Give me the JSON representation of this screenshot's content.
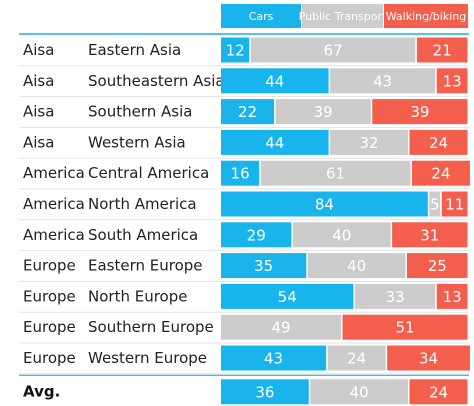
{
  "chart_data": {
    "type": "bar",
    "stacked": true,
    "orientation": "horizontal",
    "normalized_to": 100,
    "legend": [
      {
        "name": "Cars",
        "color": "#1ab4ec"
      },
      {
        "name": "Public Transport",
        "color": "#cccccc"
      },
      {
        "name": "Walking/biking",
        "color": "#f45e4c"
      }
    ],
    "rows": [
      {
        "region": "Aisa",
        "subregion": "Eastern Asia",
        "values": [
          12,
          67,
          21
        ]
      },
      {
        "region": "Aisa",
        "subregion": "Southeastern Asia",
        "values": [
          44,
          43,
          13
        ]
      },
      {
        "region": "Aisa",
        "subregion": "Southern Asia",
        "values": [
          22,
          39,
          39
        ]
      },
      {
        "region": "Aisa",
        "subregion": "Western Asia",
        "values": [
          44,
          32,
          24
        ]
      },
      {
        "region": "America",
        "subregion": "Central America",
        "values": [
          16,
          61,
          24
        ]
      },
      {
        "region": "America",
        "subregion": "North America",
        "values": [
          84,
          5,
          11
        ]
      },
      {
        "region": "America",
        "subregion": "South America",
        "values": [
          29,
          40,
          31
        ]
      },
      {
        "region": "Europe",
        "subregion": "Eastern Europe",
        "values": [
          35,
          40,
          25
        ]
      },
      {
        "region": "Europe",
        "subregion": "North Europe",
        "values": [
          54,
          33,
          13
        ]
      },
      {
        "region": "Europe",
        "subregion": "Southern Europe",
        "values": [
          0,
          49,
          51
        ]
      },
      {
        "region": "Europe",
        "subregion": "Western Europe",
        "values": [
          43,
          24,
          34
        ]
      }
    ],
    "average": {
      "label": "Avg.",
      "values": [
        36,
        40,
        24
      ]
    }
  }
}
